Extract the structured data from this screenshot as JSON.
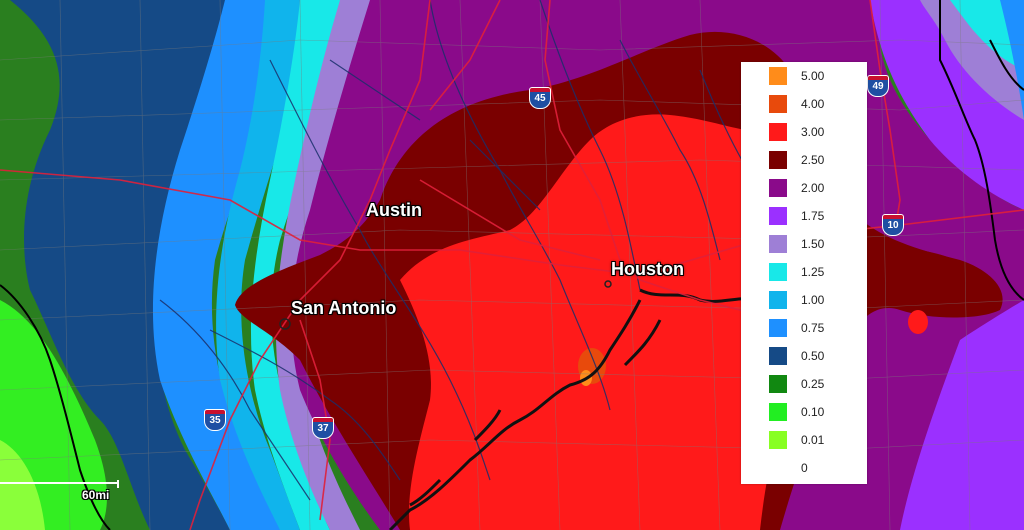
{
  "cities": {
    "austin": "Austin",
    "san_antonio": "San Antonio",
    "houston": "Houston"
  },
  "highways": {
    "i45": "45",
    "i49": "49",
    "i10": "10",
    "i35": "35",
    "i37": "37"
  },
  "legend": {
    "items": [
      {
        "value": "5.00",
        "color": "#ff8c1a"
      },
      {
        "value": "4.00",
        "color": "#e84a0c"
      },
      {
        "value": "3.00",
        "color": "#ff1a1a"
      },
      {
        "value": "2.50",
        "color": "#7a0000"
      },
      {
        "value": "2.00",
        "color": "#8a0a8a"
      },
      {
        "value": "1.75",
        "color": "#9b30ff"
      },
      {
        "value": "1.50",
        "color": "#9e7fd6"
      },
      {
        "value": "1.25",
        "color": "#18e8e8"
      },
      {
        "value": "1.00",
        "color": "#10b4ec"
      },
      {
        "value": "0.75",
        "color": "#1e90ff"
      },
      {
        "value": "0.50",
        "color": "#154a86"
      },
      {
        "value": "0.25",
        "color": "#118811"
      },
      {
        "value": "0.10",
        "color": "#22ee22"
      },
      {
        "value": "0.01",
        "color": "#88ff22"
      },
      {
        "value": "0",
        "color": ""
      }
    ]
  },
  "scale": {
    "label": "60mi"
  }
}
